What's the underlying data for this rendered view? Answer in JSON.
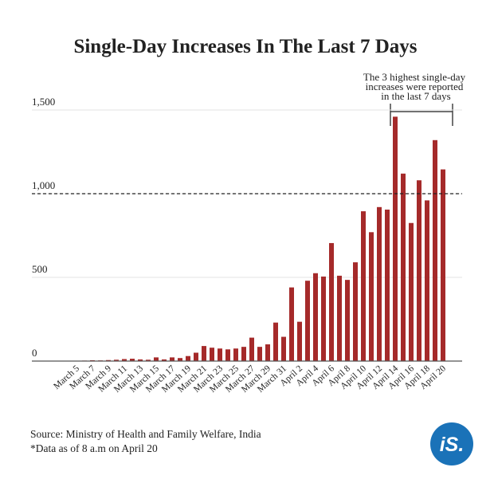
{
  "chart_data": {
    "type": "bar",
    "title": "Single-Day Increases In The Last 7 Days",
    "categories": [
      "March 5",
      null,
      "March 7",
      null,
      "March 9",
      null,
      "March 11",
      null,
      "March 13",
      null,
      "March 15",
      null,
      "March 17",
      null,
      "March 19",
      null,
      "March 21",
      null,
      "March 23",
      null,
      "March 25",
      null,
      "March 27",
      null,
      "March 29",
      null,
      "March 31",
      null,
      "April 2",
      null,
      "April 4",
      null,
      "April 6",
      null,
      "April 8",
      null,
      "April 10",
      null,
      "April 12",
      null,
      "April 14",
      null,
      "April 16",
      null,
      "April 18",
      null,
      "April 20"
    ],
    "values": [
      1,
      3,
      5,
      4,
      6,
      8,
      12,
      14,
      10,
      8,
      22,
      10,
      22,
      18,
      30,
      50,
      90,
      80,
      75,
      70,
      75,
      85,
      140,
      85,
      100,
      230,
      145,
      440,
      235,
      480,
      525,
      505,
      705,
      510,
      485,
      590,
      895,
      770,
      920,
      905,
      1460,
      1120,
      825,
      1080,
      960,
      1320,
      1145
    ],
    "color": "#a52a2a",
    "ylim": [
      0,
      1500
    ],
    "yticks": [
      0,
      500,
      {
        "value": 1000,
        "label": "1,000"
      },
      {
        "value": 1500,
        "label": "1,500"
      }
    ],
    "reference_line": 1000,
    "grid": true,
    "annotation": [
      "The 3 highest single-day",
      "increases were reported",
      "in the last 7 days"
    ],
    "source": "Source: Ministry of Health and Family Welfare, India",
    "note": "*Data as of 8 a.m on April 20",
    "logo": "iS."
  }
}
